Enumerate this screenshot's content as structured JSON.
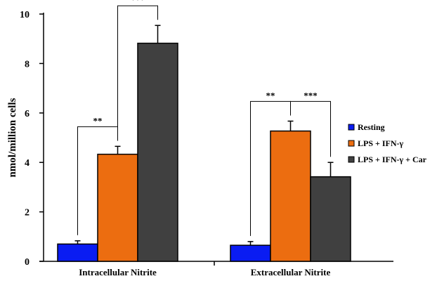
{
  "chart_data": {
    "type": "bar",
    "ylabel": "nmol/million cells",
    "ylim": [
      0,
      10
    ],
    "yticks": [
      0,
      2,
      4,
      6,
      8,
      10
    ],
    "categories": [
      "Intracellular Nitrite",
      "Extracellular Nitrite"
    ],
    "series": [
      {
        "name": "Resting",
        "color": "#0a1cf2",
        "values": [
          0.7,
          0.65
        ],
        "errors": [
          0.13,
          0.15
        ]
      },
      {
        "name": "LPS + IFN-γ",
        "color": "#ec6d10",
        "values": [
          4.33,
          5.27
        ],
        "errors": [
          0.32,
          0.4
        ]
      },
      {
        "name": "LPS + IFN-γ + Car",
        "color": "#404040",
        "values": [
          8.82,
          3.42
        ],
        "errors": [
          0.72,
          0.58
        ]
      }
    ],
    "significance": [
      {
        "category": 0,
        "from": 0,
        "to": 1,
        "label": "**"
      },
      {
        "category": 0,
        "from": 1,
        "to": 2,
        "label": "***"
      },
      {
        "category": 1,
        "from": 0,
        "to": 1,
        "label": "**"
      },
      {
        "category": 1,
        "from": 1,
        "to": 2,
        "label": "***"
      }
    ],
    "legend_position": "right"
  }
}
